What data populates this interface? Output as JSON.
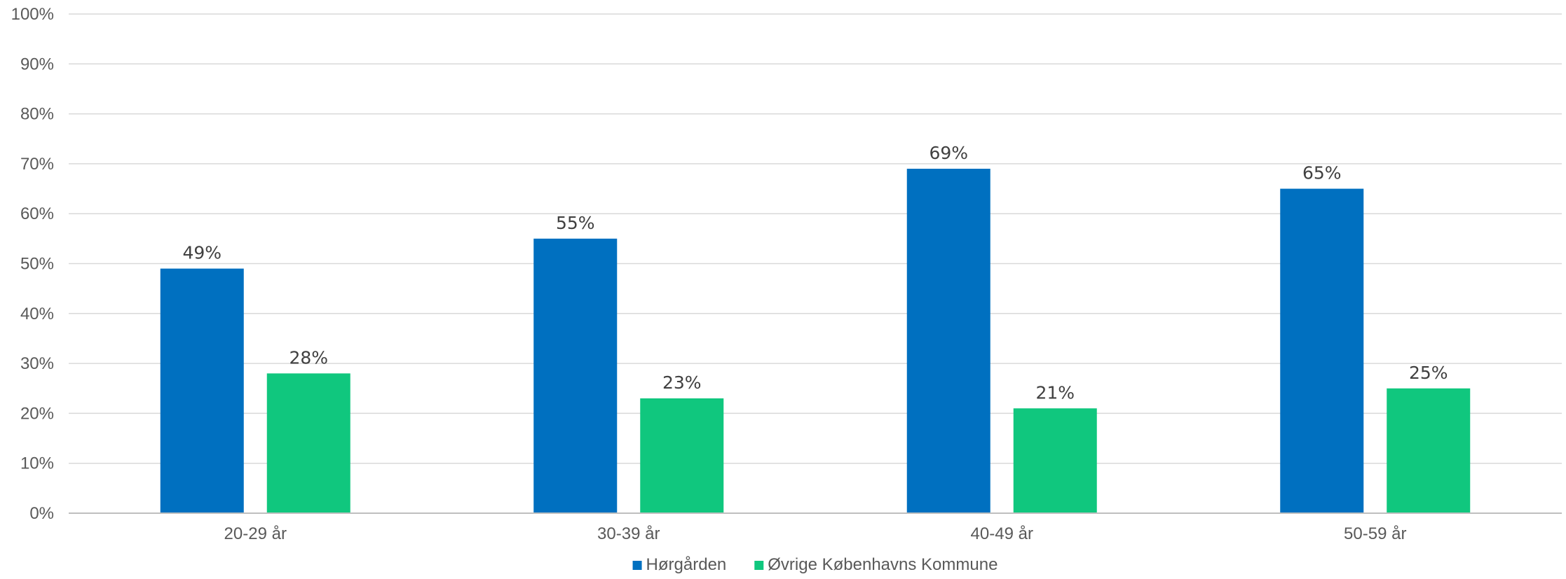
{
  "chart_data": {
    "type": "bar",
    "categories": [
      "20-29 år",
      "30-39 år",
      "40-49 år",
      "50-59 år"
    ],
    "series": [
      {
        "name": "Hørgården",
        "values": [
          49,
          55,
          69,
          65
        ],
        "labels": [
          "49%",
          "55%",
          "69%",
          "65%"
        ],
        "color": "#0070C0"
      },
      {
        "name": "Øvrige Københavns Kommune",
        "values": [
          28,
          23,
          21,
          25
        ],
        "labels": [
          "28%",
          "23%",
          "21%",
          "25%"
        ],
        "color": "#10C77E"
      }
    ],
    "ylim": [
      0,
      100
    ],
    "yticks": [
      "0%",
      "10%",
      "20%",
      "30%",
      "40%",
      "50%",
      "60%",
      "70%",
      "80%",
      "90%",
      "100%"
    ],
    "grid": true,
    "legend_position": "bottom",
    "gridline_color": "#D9D9D9"
  }
}
